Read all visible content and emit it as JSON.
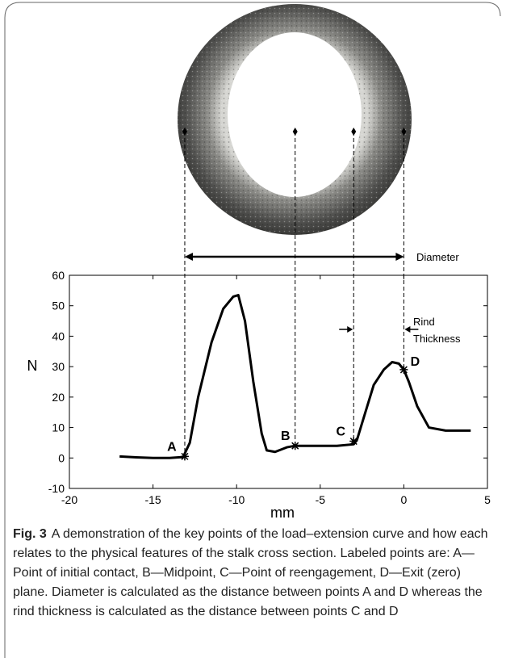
{
  "chart_data": {
    "type": "line",
    "x": [
      -17,
      -16,
      -15,
      -14,
      -13.2,
      -12.8,
      -12.3,
      -11.5,
      -10.8,
      -10.2,
      -9.9,
      -9.5,
      -9,
      -8.5,
      -8.2,
      -7.7,
      -7,
      -6.5,
      -5,
      -4,
      -3,
      -2.8,
      -2.3,
      -1.8,
      -1.2,
      -0.7,
      -0.3,
      0,
      0.3,
      0.8,
      1.5,
      2.5,
      4
    ],
    "values": [
      0.5,
      0.2,
      0,
      0,
      0.3,
      5,
      20,
      38,
      49,
      53,
      53.5,
      45,
      25,
      8,
      2.5,
      2,
      3.5,
      4,
      4,
      4,
      4.5,
      6,
      15,
      24,
      29,
      31.5,
      31,
      29,
      25,
      17,
      10,
      9,
      9
    ],
    "color": "#000000",
    "points": {
      "labels": [
        "A",
        "B",
        "C",
        "D"
      ],
      "x": [
        -13.1,
        -6.5,
        -3,
        0
      ],
      "values": [
        0.5,
        4,
        5.5,
        29
      ]
    },
    "xlabel": "mm",
    "ylabel": "N",
    "xlim": [
      -20,
      5
    ],
    "ylim": [
      -10,
      60
    ],
    "xticks": [
      -20,
      -15,
      -10,
      -5,
      0,
      5
    ],
    "yticks": [
      -10,
      0,
      10,
      20,
      30,
      40,
      50,
      60
    ],
    "annotations": {
      "diameter": "Diameter",
      "rind": "Rind",
      "thickness": "Thickness"
    }
  },
  "caption": {
    "label": "Fig. 3",
    "text": "A demonstration of the key points of the load–extension curve and how each relates to the physical features of the stalk cross section. Labeled points are: A—Point of initial contact, B—Midpoint, C—Point of reengagement, D—Exit (zero) plane. Diameter is calculated as the distance between points A and D whereas the rind thickness is calculated as the distance between points C and D"
  }
}
